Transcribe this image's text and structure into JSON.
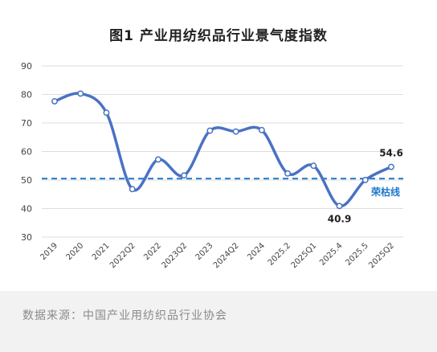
{
  "chart_data": {
    "type": "line",
    "title": "图1  产业用纺织品行业景气度指数",
    "categories": [
      "2019",
      "2020",
      "2021",
      "2022Q2",
      "2022",
      "2023Q2",
      "2023",
      "2024Q2",
      "2024",
      "2025.2",
      "2025Q1",
      "2025.4",
      "2025.5",
      "2025Q2"
    ],
    "series": [
      {
        "values": [
          77.6,
          80.3,
          73.6,
          46.8,
          57.2,
          51.6,
          67.3,
          67.0,
          67.5,
          52.3,
          55.0,
          40.9,
          50.0,
          54.6
        ]
      }
    ],
    "ylim": [
      30,
      90
    ],
    "yticks": [
      30,
      40,
      50,
      60,
      70,
      80,
      90
    ],
    "xlabel": "",
    "ylabel": "",
    "grid": true,
    "reference_line": {
      "value": 50.5,
      "label": "荣枯线",
      "color": "#1f78c8"
    },
    "point_labels": [
      {
        "index": 11,
        "text": "40.9"
      },
      {
        "index": 13,
        "text": "54.6"
      }
    ],
    "line_color": "#4a72c4"
  },
  "source_note": "数据来源：中国产业用纺织品行业协会"
}
